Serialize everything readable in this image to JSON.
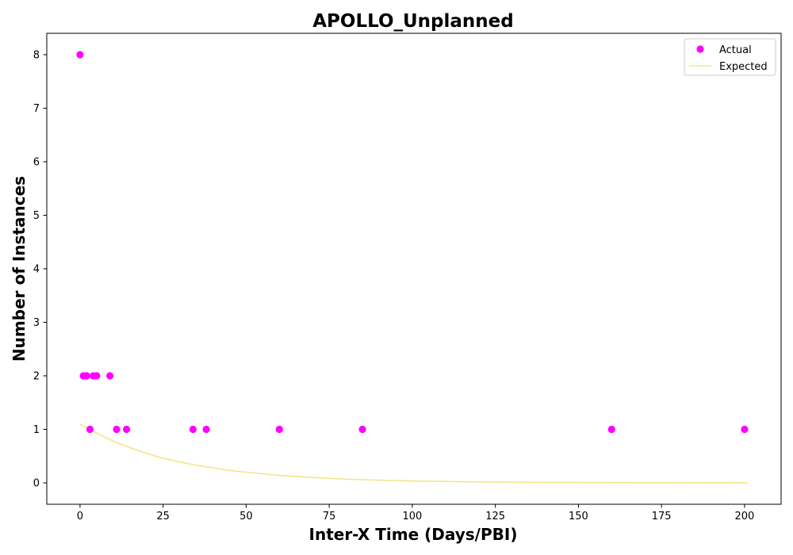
{
  "chart_data": {
    "type": "scatter",
    "title": "APOLLO_Unplanned",
    "xlabel": "Inter-X Time (Days/PBI)",
    "ylabel": "Number of Instances",
    "xlim": [
      -10,
      211
    ],
    "ylim": [
      -0.4,
      8.4
    ],
    "x_ticks": [
      0,
      25,
      50,
      75,
      100,
      125,
      150,
      175,
      200
    ],
    "y_ticks": [
      0,
      1,
      2,
      3,
      4,
      5,
      6,
      7,
      8
    ],
    "grid": false,
    "legend_position": "top-right",
    "series": [
      {
        "name": "Actual",
        "kind": "scatter",
        "color": "#ff00ff",
        "points": [
          {
            "x": 0,
            "y": 8
          },
          {
            "x": 1,
            "y": 2
          },
          {
            "x": 2,
            "y": 2
          },
          {
            "x": 3,
            "y": 1
          },
          {
            "x": 4,
            "y": 2
          },
          {
            "x": 5,
            "y": 2
          },
          {
            "x": 9,
            "y": 2
          },
          {
            "x": 11,
            "y": 1
          },
          {
            "x": 14,
            "y": 1
          },
          {
            "x": 34,
            "y": 1
          },
          {
            "x": 38,
            "y": 1
          },
          {
            "x": 60,
            "y": 1
          },
          {
            "x": 85,
            "y": 1
          },
          {
            "x": 160,
            "y": 1
          },
          {
            "x": 200,
            "y": 1
          }
        ]
      },
      {
        "name": "Expected",
        "kind": "line",
        "color": "#f0e68c",
        "points": [
          {
            "x": 0,
            "y": 1.1
          },
          {
            "x": 5,
            "y": 0.93
          },
          {
            "x": 10,
            "y": 0.78
          },
          {
            "x": 15,
            "y": 0.66
          },
          {
            "x": 20,
            "y": 0.55
          },
          {
            "x": 25,
            "y": 0.46
          },
          {
            "x": 30,
            "y": 0.39
          },
          {
            "x": 35,
            "y": 0.33
          },
          {
            "x": 40,
            "y": 0.28
          },
          {
            "x": 45,
            "y": 0.23
          },
          {
            "x": 50,
            "y": 0.2
          },
          {
            "x": 60,
            "y": 0.14
          },
          {
            "x": 70,
            "y": 0.1
          },
          {
            "x": 80,
            "y": 0.07
          },
          {
            "x": 90,
            "y": 0.05
          },
          {
            "x": 100,
            "y": 0.035
          },
          {
            "x": 120,
            "y": 0.018
          },
          {
            "x": 140,
            "y": 0.009
          },
          {
            "x": 160,
            "y": 0.005
          },
          {
            "x": 180,
            "y": 0.002
          },
          {
            "x": 201,
            "y": 0.001
          }
        ]
      }
    ]
  }
}
